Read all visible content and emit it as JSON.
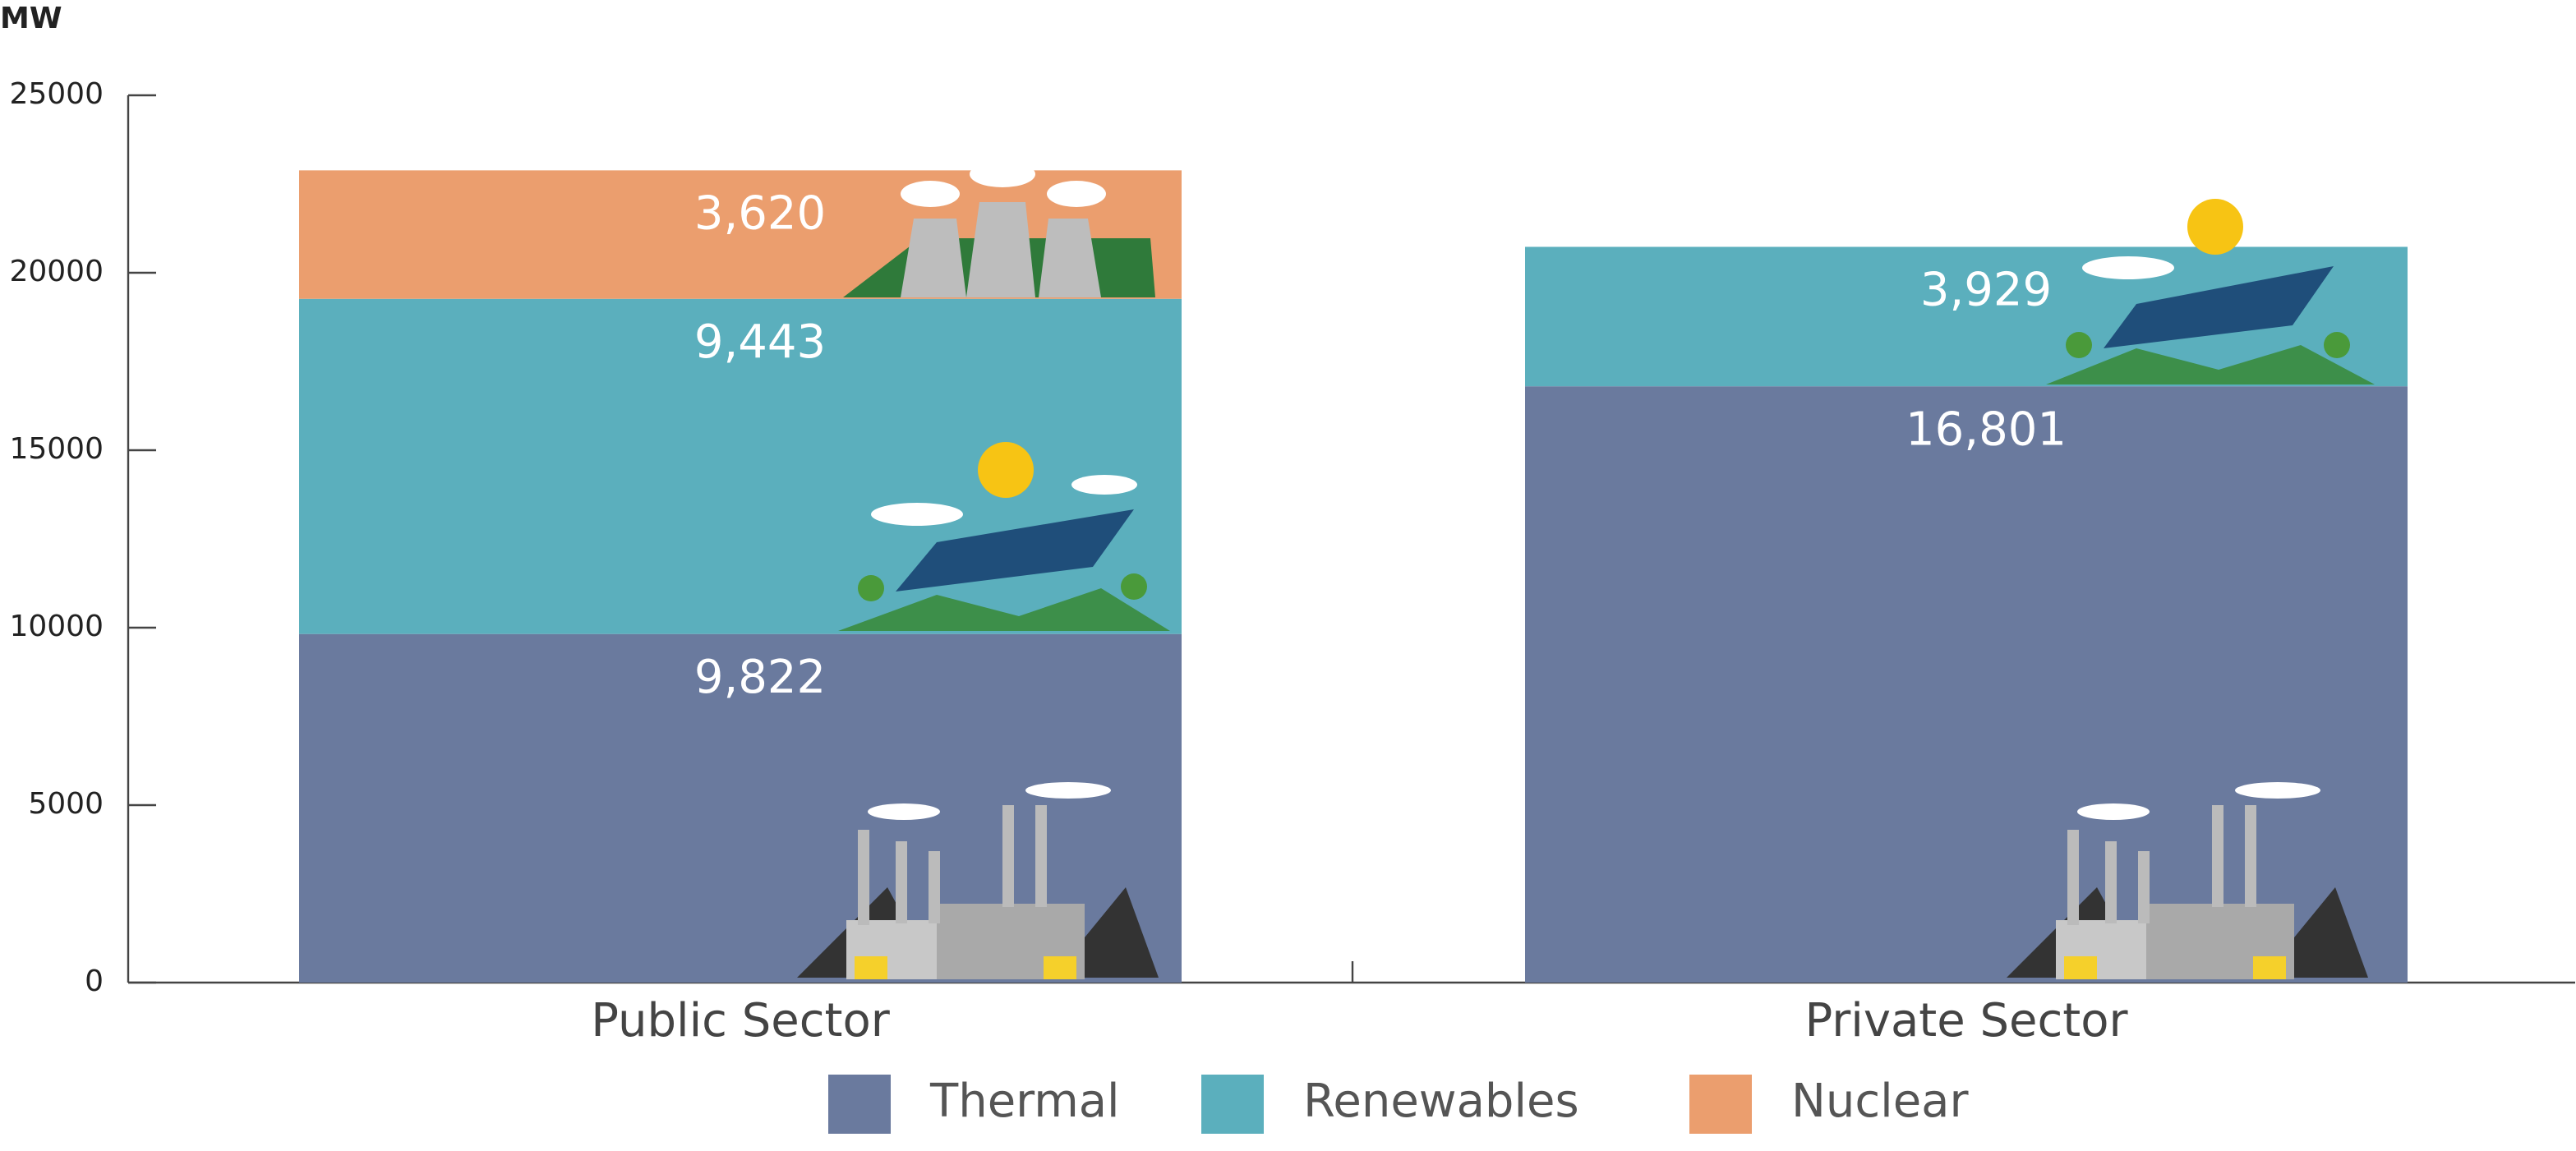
{
  "chart_data": {
    "type": "stacked-bar",
    "y_label": "MW",
    "categories": [
      "Public Sector",
      "Private Sector"
    ],
    "series": [
      {
        "name": "Thermal",
        "color": "#6a7a9e",
        "values": [
          9822,
          16801
        ],
        "value_labels": [
          "9,822",
          "16,801"
        ]
      },
      {
        "name": "Renewables",
        "color": "#5bafbd",
        "values": [
          9443,
          3929
        ],
        "value_labels": [
          "9,443",
          "3,929"
        ]
      },
      {
        "name": "Nuclear",
        "color": "#eb9e6e",
        "values": [
          3620,
          null
        ],
        "value_labels": [
          "3,620",
          null
        ]
      }
    ],
    "ylim": [
      0,
      25000
    ],
    "yticks": [
      0,
      5000,
      10000,
      15000,
      20000,
      25000
    ]
  }
}
